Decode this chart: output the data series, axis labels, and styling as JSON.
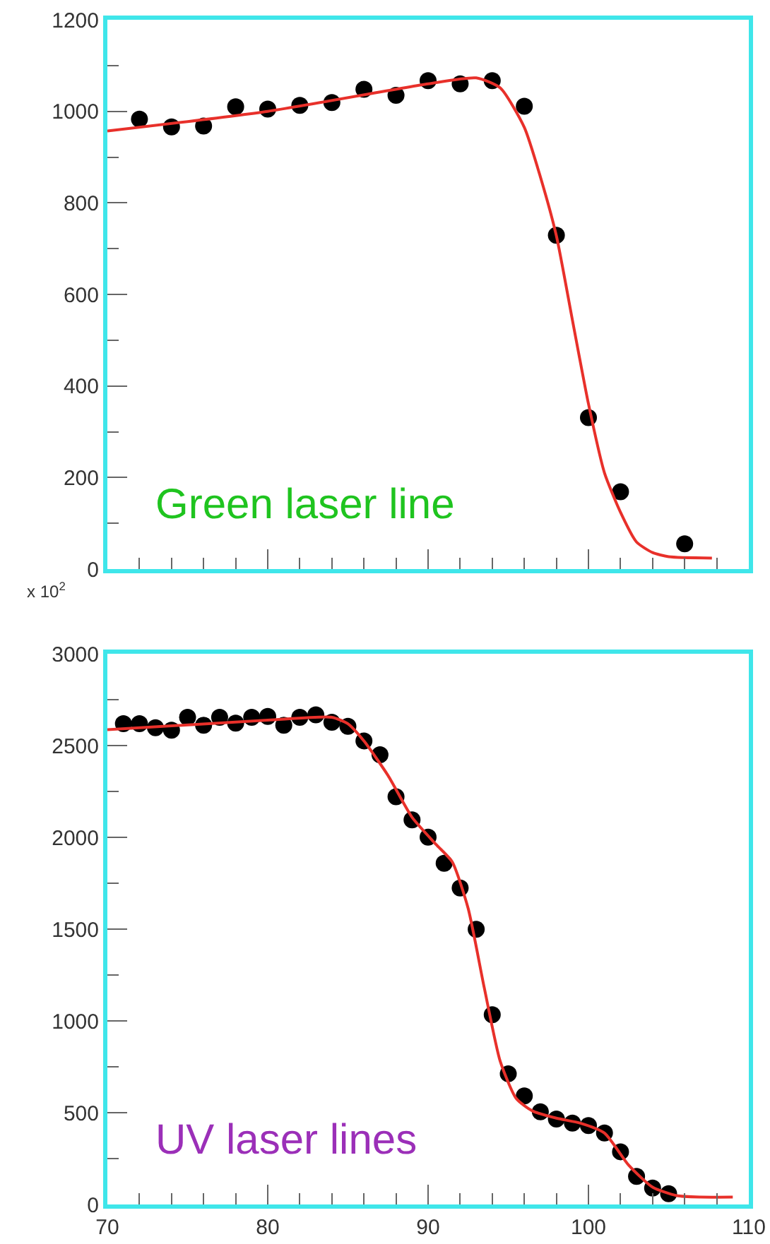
{
  "chart_data": [
    {
      "type": "scatter",
      "xlim": [
        70,
        110
      ],
      "xticks": [
        70,
        80,
        90,
        100,
        110
      ],
      "ylim": [
        0,
        1200
      ],
      "yticks": [
        0,
        200,
        400,
        600,
        800,
        1000,
        1200
      ],
      "tick_labels": "y",
      "annotations": [
        "Green laser line"
      ],
      "series": [
        {
          "type": "scatter",
          "color": "#000000",
          "marker": "circle",
          "x": [
            72,
            74,
            76,
            78,
            80,
            82,
            84,
            86,
            88,
            90,
            92,
            94,
            96,
            98,
            100,
            102,
            106
          ],
          "values": [
            983,
            966,
            968,
            1010,
            1005,
            1013,
            1019,
            1048,
            1035,
            1067,
            1060,
            1067,
            1011,
            729,
            331,
            169,
            55
          ]
        },
        {
          "type": "line",
          "color": "#e8302a",
          "marker": "none",
          "line_style": "solid",
          "x": [
            70,
            80,
            90,
            93,
            94.5,
            96,
            97,
            98,
            99,
            100,
            101,
            102,
            103,
            104,
            105,
            107.7
          ],
          "values": [
            957,
            1000,
            1060,
            1073,
            1051,
            965,
            857,
            728,
            544,
            361,
            210,
            124,
            59,
            36,
            27,
            24
          ]
        }
      ]
    },
    {
      "type": "scatter",
      "xlim": [
        70,
        110
      ],
      "xticks": [
        70,
        80,
        90,
        100,
        110
      ],
      "ylim": [
        0,
        3000
      ],
      "yticks": [
        0,
        500,
        1000,
        1500,
        2000,
        2500,
        3000
      ],
      "annotations": [
        "x 10$^{2}$",
        "UV laser lines"
      ],
      "series": [
        {
          "type": "scatter",
          "color": "#000000",
          "marker": "circle",
          "x": [
            71,
            72,
            73,
            74,
            75,
            76,
            77,
            78,
            79,
            80,
            81,
            82,
            83,
            84,
            85,
            86,
            87,
            88,
            89,
            90,
            91,
            92,
            93,
            94,
            95,
            96,
            97,
            98,
            99,
            100,
            101,
            102,
            103,
            104,
            105
          ],
          "values": [
            2619,
            2619,
            2597,
            2584,
            2654,
            2611,
            2654,
            2622,
            2654,
            2659,
            2611,
            2654,
            2667,
            2627,
            2605,
            2525,
            2450,
            2221,
            2095,
            2001,
            1859,
            1724,
            1499,
            1034,
            712,
            591,
            505,
            465,
            443,
            430,
            389,
            287,
            153,
            89,
            59
          ]
        },
        {
          "type": "line",
          "color": "#e8302a",
          "marker": "none",
          "line_style": "solid",
          "x": [
            70,
            80,
            84,
            85,
            86,
            87.5,
            89,
            90.5,
            91.5,
            92.5,
            93.5,
            94.5,
            95.5,
            96.5,
            98,
            99.5,
            101,
            102.5,
            104,
            105.5,
            107,
            109
          ],
          "values": [
            2587,
            2638,
            2654,
            2619,
            2525,
            2337,
            2109,
            1961,
            1867,
            1612,
            1182,
            779,
            577,
            510,
            470,
            443,
            389,
            215,
            94,
            48,
            40,
            40
          ]
        }
      ]
    }
  ]
}
